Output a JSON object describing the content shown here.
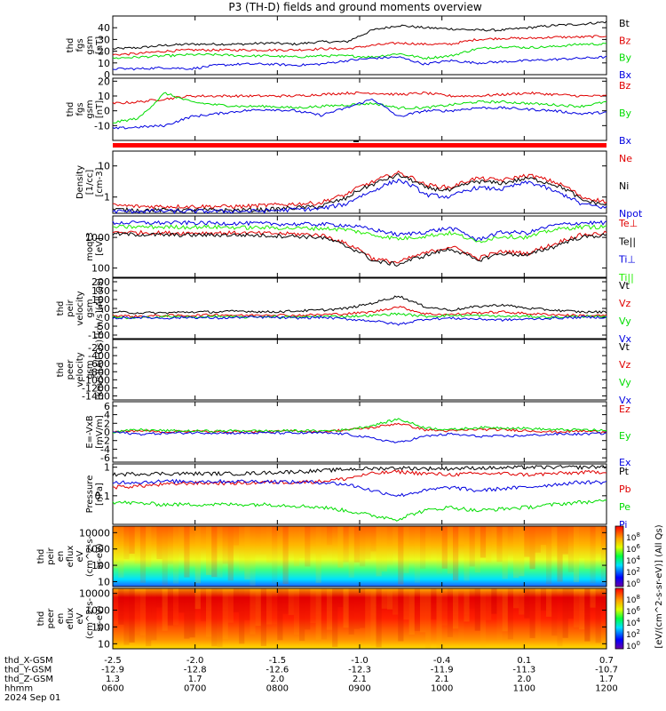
{
  "title": "P3 (TH-D) fields and ground moments overview",
  "colors": {
    "black": "#000000",
    "red": "#e00000",
    "green": "#00dd00",
    "blue": "#0000e0",
    "lime": "#22ee00"
  },
  "chart_data": [
    {
      "type": "line",
      "id": "p1",
      "ylabel": [
        "thd",
        "fgs",
        "gsm",
        "[nT]"
      ],
      "ylim": [
        0,
        50
      ],
      "yticks": [
        0,
        10,
        20,
        30,
        40
      ],
      "series": [
        {
          "name": "Bt",
          "color": "black",
          "values": [
            22,
            23,
            25,
            26,
            26,
            26,
            27,
            26,
            28,
            28,
            38,
            42,
            40,
            39,
            38,
            38,
            40,
            42,
            43,
            45
          ]
        },
        {
          "name": "Bz",
          "color": "red",
          "values": [
            17,
            18,
            20,
            21,
            21,
            21,
            21,
            21,
            22,
            22,
            25,
            27,
            26,
            26,
            30,
            31,
            31,
            32,
            32,
            33
          ]
        },
        {
          "name": "By",
          "color": "green",
          "values": [
            14,
            15,
            16,
            17,
            17,
            16,
            16,
            15,
            16,
            16,
            15,
            18,
            14,
            16,
            22,
            24,
            23,
            24,
            26,
            26
          ]
        },
        {
          "name": "Bx",
          "color": "blue",
          "values": [
            5,
            5,
            6,
            5,
            8,
            9,
            9,
            8,
            9,
            12,
            14,
            15,
            9,
            12,
            10,
            11,
            12,
            13,
            14,
            15
          ]
        }
      ]
    },
    {
      "type": "line",
      "id": "p2",
      "ylabel": [
        "thd",
        "fgs",
        "gsm",
        "[nT]"
      ],
      "ylim": [
        -20,
        22
      ],
      "yticks": [
        -10,
        0,
        10,
        20
      ],
      "series": [
        {
          "name": "Bz",
          "color": "red",
          "values": [
            5,
            6,
            8,
            10,
            10,
            10,
            10,
            10,
            11,
            12,
            12,
            11,
            12,
            10,
            10,
            11,
            12,
            11,
            10,
            10
          ]
        },
        {
          "name": "By",
          "color": "green",
          "values": [
            -8,
            -5,
            12,
            6,
            4,
            3,
            3,
            2,
            3,
            4,
            5,
            2,
            2,
            4,
            6,
            6,
            5,
            4,
            3,
            6
          ]
        },
        {
          "name": "Bx",
          "color": "blue",
          "values": [
            -12,
            -11,
            -10,
            -4,
            -2,
            0,
            1,
            0,
            -3,
            2,
            8,
            -4,
            0,
            0,
            2,
            2,
            1,
            0,
            -2,
            -1
          ]
        }
      ]
    },
    {
      "type": "line",
      "id": "p3",
      "ylabel": [
        "Density",
        "[1/cc]",
        "[cm-3]"
      ],
      "scale": "log",
      "ylim": [
        0.3,
        30
      ],
      "yticks": [
        1,
        10
      ],
      "series": [
        {
          "name": "Ne",
          "color": "red",
          "values": [
            0.55,
            0.5,
            0.5,
            0.5,
            0.5,
            0.5,
            0.55,
            0.6,
            0.65,
            1.2,
            3.0,
            6.0,
            2.5,
            2.0,
            4.0,
            3.5,
            5.0,
            3.0,
            1.0,
            0.7
          ]
        },
        {
          "name": "Ni",
          "color": "black",
          "values": [
            0.4,
            0.38,
            0.38,
            0.38,
            0.38,
            0.38,
            0.4,
            0.45,
            0.5,
            0.9,
            2.5,
            5.0,
            2.0,
            1.6,
            3.2,
            2.8,
            4.0,
            2.5,
            0.8,
            0.55
          ]
        },
        {
          "name": "Npot",
          "color": "blue",
          "values": [
            0.35,
            0.35,
            0.35,
            0.35,
            0.35,
            0.35,
            0.36,
            0.4,
            0.42,
            0.6,
            1.5,
            3.5,
            1.2,
            1.0,
            2.0,
            1.8,
            3.0,
            1.5,
            0.6,
            0.45
          ]
        }
      ]
    },
    {
      "type": "line",
      "id": "p4",
      "ylabel": [
        "moqt3",
        "[eV]"
      ],
      "scale": "log",
      "ylim": [
        50,
        5000
      ],
      "yticks": [
        100,
        1000
      ],
      "series": [
        {
          "name": "Te⊥",
          "color": "red",
          "values": [
            1500,
            1450,
            1400,
            1400,
            1400,
            1400,
            1350,
            1300,
            1200,
            600,
            200,
            150,
            300,
            500,
            200,
            350,
            300,
            600,
            1200,
            1400
          ]
        },
        {
          "name": "Te||",
          "color": "black",
          "values": [
            1300,
            1250,
            1200,
            1200,
            1200,
            1200,
            1150,
            1100,
            1000,
            500,
            170,
            130,
            250,
            420,
            170,
            300,
            260,
            500,
            1000,
            1200
          ]
        },
        {
          "name": "Ti⊥",
          "color": "blue",
          "values": [
            3000,
            3000,
            3000,
            3000,
            2900,
            2900,
            2800,
            2700,
            2700,
            2500,
            1800,
            1200,
            1500,
            2000,
            800,
            1500,
            1400,
            2500,
            3000,
            3000
          ]
        },
        {
          "name": "Ti||",
          "color": "lime",
          "values": [
            2200,
            2200,
            2200,
            2200,
            2200,
            2100,
            2100,
            2000,
            2000,
            1800,
            1200,
            900,
            1100,
            1400,
            700,
            1100,
            1000,
            1800,
            2200,
            2200
          ]
        }
      ]
    },
    {
      "type": "line",
      "id": "p5",
      "ylabel": [
        "thd",
        "peir",
        "velocity",
        "gsm",
        "[km/s](All Qs)"
      ],
      "ylim": [
        -120,
        220
      ],
      "yticks": [
        -100,
        -50,
        0,
        50,
        100,
        150,
        200
      ],
      "series": [
        {
          "name": "Vt",
          "color": "black",
          "values": [
            30,
            25,
            25,
            30,
            30,
            35,
            30,
            35,
            40,
            50,
            80,
            120,
            60,
            40,
            60,
            70,
            50,
            40,
            30,
            30
          ]
        },
        {
          "name": "Vz",
          "color": "red",
          "values": [
            10,
            5,
            10,
            10,
            15,
            10,
            15,
            10,
            15,
            20,
            30,
            60,
            20,
            15,
            25,
            30,
            20,
            15,
            10,
            10
          ]
        },
        {
          "name": "Vy",
          "color": "green",
          "values": [
            0,
            -5,
            5,
            0,
            5,
            0,
            5,
            0,
            5,
            5,
            10,
            20,
            5,
            10,
            10,
            5,
            5,
            0,
            5,
            0
          ]
        },
        {
          "name": "Vx",
          "color": "blue",
          "values": [
            -5,
            0,
            -5,
            0,
            -5,
            0,
            0,
            -5,
            0,
            -10,
            -20,
            -40,
            -10,
            -5,
            -10,
            -15,
            -10,
            -5,
            0,
            0
          ]
        }
      ]
    },
    {
      "type": "line",
      "id": "p6",
      "ylabel": [
        "thd",
        "peer",
        "velocity",
        "gsm",
        "[km/s](All Qs)"
      ],
      "ylim": [
        -1500,
        0
      ],
      "yticks": [
        -200,
        -400,
        -600,
        -800,
        -1000,
        -1200,
        -1400
      ],
      "series": [
        {
          "name": "Vt",
          "color": "black",
          "values": []
        },
        {
          "name": "Vz",
          "color": "red",
          "values": []
        },
        {
          "name": "Vy",
          "color": "green",
          "values": []
        },
        {
          "name": "Vx",
          "color": "blue",
          "values": []
        }
      ]
    },
    {
      "type": "line",
      "id": "p7",
      "ylabel": [
        "E=-VxB",
        "[mV/m]"
      ],
      "ylim": [
        -7,
        7
      ],
      "yticks": [
        -6,
        -4,
        -2,
        0,
        2,
        4,
        6
      ],
      "series": [
        {
          "name": "Ez",
          "color": "red",
          "values": [
            0,
            0.3,
            0,
            0.2,
            0,
            0.1,
            0,
            0.3,
            0,
            0.5,
            1,
            2,
            0.5,
            0.2,
            0.6,
            0.5,
            0.3,
            0,
            0.2,
            0
          ]
        },
        {
          "name": "Ey",
          "color": "green",
          "values": [
            0,
            0.5,
            0.3,
            0.2,
            0.2,
            0.3,
            0.2,
            0.3,
            0.2,
            0.5,
            1.5,
            3,
            1,
            0.5,
            1,
            1,
            0.8,
            0.5,
            0.5,
            0.3
          ]
        },
        {
          "name": "Ex",
          "color": "blue",
          "values": [
            0,
            -0.5,
            -0.3,
            -0.2,
            -0.2,
            -0.3,
            -0.2,
            -0.3,
            -0.2,
            -0.5,
            -1.5,
            -2.5,
            -1,
            -0.5,
            -1,
            -1,
            -0.8,
            -0.5,
            -0.5,
            -0.3
          ]
        }
      ]
    },
    {
      "type": "line",
      "id": "p8",
      "ylabel": [
        "Pressure",
        "[nPa]"
      ],
      "scale": "log",
      "ylim": [
        0.01,
        1.3
      ],
      "yticks": [
        0.1,
        1.0
      ],
      "series": [
        {
          "name": "Pt",
          "color": "black",
          "values": [
            0.55,
            0.6,
            0.6,
            0.6,
            0.6,
            0.6,
            0.65,
            0.7,
            0.75,
            0.85,
            0.9,
            0.95,
            0.9,
            0.9,
            0.95,
            0.95,
            1.0,
            1.0,
            1.0,
            1.05
          ]
        },
        {
          "name": "Pb",
          "color": "red",
          "values": [
            0.2,
            0.22,
            0.25,
            0.28,
            0.28,
            0.28,
            0.3,
            0.3,
            0.32,
            0.4,
            0.6,
            0.7,
            0.6,
            0.55,
            0.6,
            0.6,
            0.55,
            0.6,
            0.65,
            0.7
          ]
        },
        {
          "name": "Pe",
          "color": "green",
          "values": [
            0.06,
            0.055,
            0.05,
            0.05,
            0.05,
            0.05,
            0.05,
            0.045,
            0.04,
            0.03,
            0.02,
            0.015,
            0.03,
            0.04,
            0.03,
            0.035,
            0.04,
            0.05,
            0.06,
            0.065
          ]
        },
        {
          "name": "Pi",
          "color": "blue",
          "values": [
            0.3,
            0.3,
            0.32,
            0.32,
            0.32,
            0.32,
            0.32,
            0.3,
            0.3,
            0.25,
            0.15,
            0.1,
            0.15,
            0.2,
            0.15,
            0.18,
            0.2,
            0.25,
            0.3,
            0.3
          ]
        }
      ]
    },
    {
      "type": "heatmap",
      "id": "p9",
      "ylabel": [
        "thd",
        "peir",
        "en",
        "eflux",
        "eV",
        "(cm^2-s-",
        "sr-eV)"
      ],
      "scale": "log",
      "ylim": [
        5,
        25000
      ],
      "yticks": [
        10,
        100,
        1000,
        10000
      ],
      "palette": "rainbow"
    },
    {
      "type": "heatmap",
      "id": "p10",
      "ylabel": [
        "thd",
        "peer",
        "en",
        "eflux",
        "eV",
        "(cm^2-s-",
        "sr-eV)"
      ],
      "scale": "log",
      "ylim": [
        5,
        20000
      ],
      "yticks": [
        10,
        100,
        1000,
        10000
      ],
      "palette": "rainbow"
    },
    {
      "type": "table",
      "id": "xaxis",
      "rows": [
        {
          "label": "thd_X-GSM",
          "values": [
            "-2.5",
            "-2.0",
            "-1.5",
            "-1.0",
            "-0.4",
            "0.1",
            "0.7"
          ]
        },
        {
          "label": "thd_Y-GSM",
          "values": [
            "-12.9",
            "-12.8",
            "-12.6",
            "-12.3",
            "-11.9",
            "-11.3",
            "-10.7"
          ]
        },
        {
          "label": "thd_Z-GSM",
          "values": [
            "1.3",
            "1.7",
            "2.0",
            "2.1",
            "2.1",
            "2.0",
            "1.7"
          ]
        },
        {
          "label": "hhmm",
          "values": [
            "0600",
            "0700",
            "0800",
            "0900",
            "1000",
            "1100",
            "1200"
          ]
        }
      ],
      "date": "2024 Sep 01"
    }
  ],
  "colorbar": {
    "label": "[eV/(cm^2-s-sr-eV)] (All Qs)",
    "ticks_p9": [
      "10^8",
      "10^6",
      "10^4",
      "10^2",
      "10^0"
    ],
    "ticks_p10": [
      "10^8",
      "10^6",
      "10^4",
      "10^2",
      "10^0"
    ]
  }
}
